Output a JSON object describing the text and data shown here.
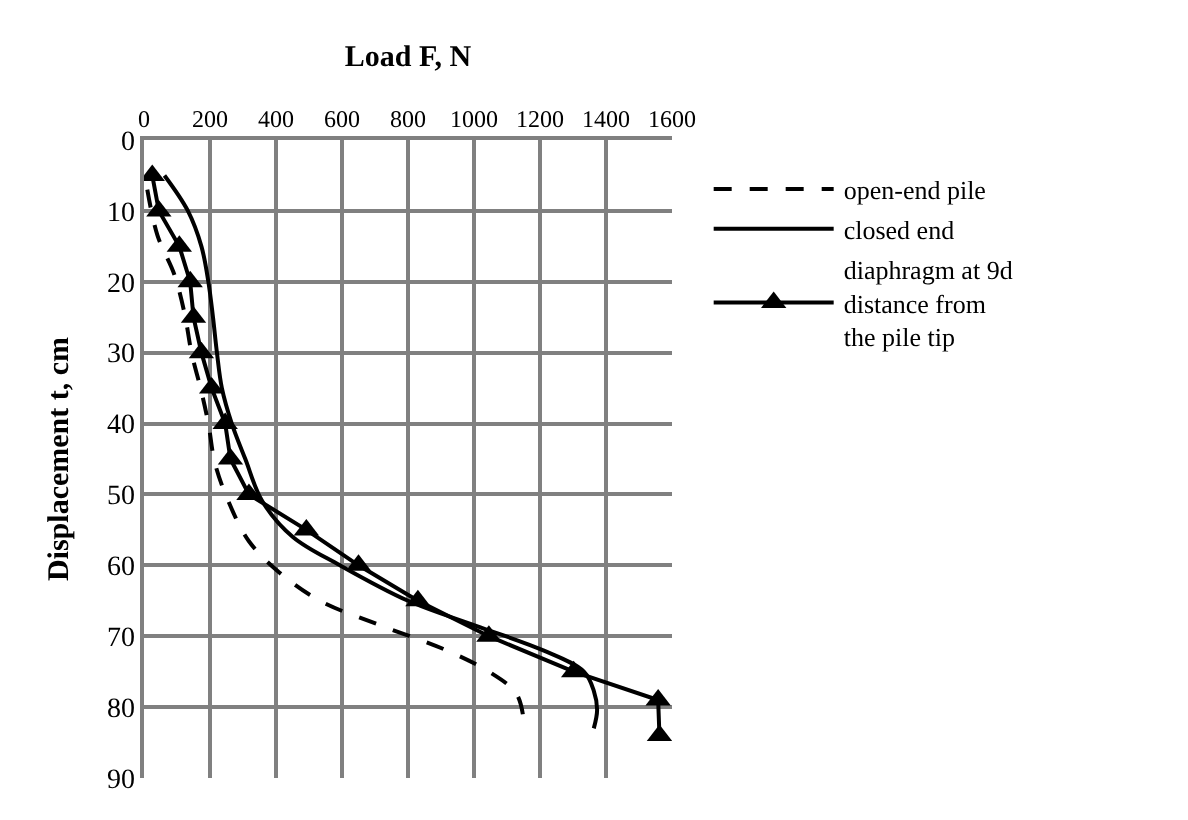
{
  "chart_data": {
    "type": "line",
    "xlabel": "Load F, N",
    "ylabel": "Displacement t, cm",
    "xlim": [
      0,
      1600
    ],
    "xticks": [
      0,
      200,
      400,
      600,
      800,
      1000,
      1200,
      1400,
      1600
    ],
    "ylim": [
      90,
      0
    ],
    "yticks": [
      0,
      10,
      20,
      30,
      40,
      50,
      60,
      70,
      80,
      90
    ],
    "grid": true,
    "legend": "right",
    "marker": "none",
    "series": [
      {
        "name": "open-end pile",
        "color": "#000000",
        "line_style": "dashed",
        "x": [
          10,
          41,
          92,
          123,
          144,
          174,
          195,
          215,
          256,
          318,
          410,
          533,
          718,
          902,
          1045,
          1127,
          1148
        ],
        "values": [
          7,
          13.5,
          19,
          24.5,
          30,
          35.5,
          40,
          45.6,
          51,
          56.6,
          61,
          65,
          68.5,
          71.7,
          75,
          78,
          81
        ]
      },
      {
        "name": "closed end",
        "color": "#000000",
        "line_style": "solid",
        "x": [
          62,
          133,
          174,
          195,
          209,
          221,
          236,
          266,
          307,
          359,
          451,
          594,
          800,
          1004,
          1210,
          1333,
          1363,
          1373,
          1363
        ],
        "values": [
          5,
          10,
          15,
          20,
          25,
          30,
          35,
          40,
          45,
          51,
          56,
          60,
          65,
          68.5,
          72,
          75,
          77.7,
          80.4,
          83
        ]
      },
      {
        "name": "diaphragm at 9d distance from the pile tip",
        "color": "#000000",
        "line_style": "solid",
        "marker": "triangle",
        "x": [
          25,
          45,
          107,
          140,
          150,
          174,
          205,
          246,
          262,
          318,
          492,
          650,
          830,
          1045,
          1302,
          1558,
          1562
        ],
        "values": [
          5,
          10,
          15,
          20,
          25,
          30,
          35,
          40,
          45,
          50,
          55,
          60,
          65,
          70,
          75,
          79,
          84
        ]
      }
    ]
  }
}
